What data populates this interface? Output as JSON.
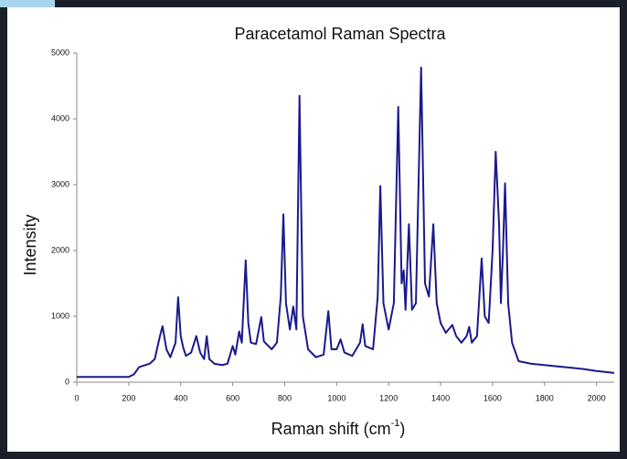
{
  "chart_data": {
    "type": "line",
    "title": "Paracetamol Raman Spectra",
    "y_label": "Intensity",
    "x_label": [
      "Raman shift (cm",
      "-1",
      ")"
    ],
    "x": [
      0,
      200,
      220,
      240,
      280,
      300,
      320,
      330,
      345,
      360,
      380,
      390,
      400,
      410,
      420,
      440,
      460,
      475,
      490,
      500,
      510,
      530,
      560,
      580,
      600,
      610,
      625,
      635,
      650,
      660,
      670,
      690,
      710,
      720,
      750,
      770,
      785,
      795,
      805,
      820,
      833,
      845,
      857,
      870,
      890,
      920,
      950,
      968,
      980,
      1000,
      1015,
      1030,
      1060,
      1090,
      1100,
      1110,
      1140,
      1158,
      1168,
      1180,
      1200,
      1220,
      1237,
      1250,
      1258,
      1265,
      1278,
      1290,
      1305,
      1325,
      1340,
      1355,
      1372,
      1385,
      1400,
      1420,
      1445,
      1460,
      1480,
      1500,
      1510,
      1520,
      1540,
      1558,
      1570,
      1585,
      1600,
      1612,
      1625,
      1632,
      1640,
      1648,
      1660,
      1675,
      1700,
      1750,
      1800,
      1850,
      1900,
      1950,
      2000,
      2068
    ],
    "series": [
      {
        "name": "Paracetamol",
        "color": "#1a1a8c",
        "values": [
          80,
          80,
          120,
          230,
          280,
          350,
          700,
          850,
          500,
          380,
          600,
          1290,
          700,
          520,
          400,
          450,
          700,
          450,
          350,
          700,
          350,
          280,
          260,
          280,
          550,
          420,
          770,
          600,
          1850,
          900,
          600,
          580,
          990,
          620,
          500,
          600,
          1300,
          2550,
          1200,
          800,
          1150,
          800,
          4350,
          1000,
          500,
          380,
          420,
          1080,
          500,
          500,
          650,
          450,
          400,
          600,
          880,
          550,
          500,
          1300,
          2980,
          1200,
          800,
          1200,
          4180,
          1500,
          1700,
          1100,
          2400,
          1100,
          1200,
          4780,
          1500,
          1300,
          2400,
          1200,
          900,
          750,
          870,
          700,
          600,
          700,
          840,
          600,
          700,
          1880,
          1000,
          900,
          2000,
          3500,
          2400,
          1200,
          2000,
          3020,
          1200,
          600,
          320,
          280,
          260,
          240,
          220,
          200,
          170,
          140
        ]
      }
    ],
    "xlim": [
      0,
      2068
    ],
    "ylim": [
      0,
      5000
    ],
    "xticks": [
      0,
      200,
      400,
      600,
      800,
      1000,
      1200,
      1400,
      1600,
      1800,
      2000
    ],
    "yticks": [
      0,
      1000,
      2000,
      3000,
      4000,
      5000
    ],
    "grid": false
  }
}
